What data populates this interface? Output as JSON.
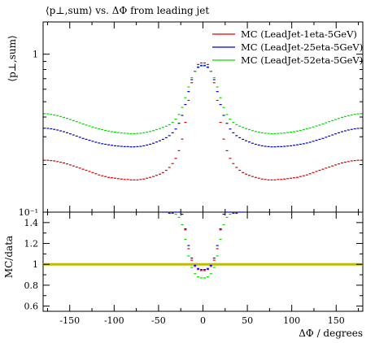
{
  "chart_data": {
    "type": "line",
    "title": "⟨p⊥,sum⟩ vs. ΔΦ from leading jet",
    "ylabel": "⟨p⊥,sum⟩",
    "xlabel": "ΔΦ / degrees",
    "ratio_ylabel": "MC/data",
    "xlim": [
      -180,
      180
    ],
    "ylim": [
      0.1,
      1.6
    ],
    "yscale": "log",
    "ratio_ylim": [
      0.55,
      1.5
    ],
    "x_ticks": [
      "-150",
      "-100",
      "-50",
      "0",
      "50",
      "100",
      "150"
    ],
    "x_tick_values": [
      -150,
      -100,
      -50,
      0,
      50,
      100,
      150
    ],
    "y_ticks": [
      "1",
      "10⁻¹"
    ],
    "y_tick_values": [
      1,
      0.1
    ],
    "ratio_ticks": [
      "1.4",
      "1.2",
      "1",
      "0.8",
      "0.6"
    ],
    "ratio_tick_values": [
      1.4,
      1.2,
      1.0,
      0.8,
      0.6
    ],
    "legend_position": "top-right",
    "x": [
      -178.2,
      -174.6,
      -171,
      -167.4,
      -163.8,
      -160.2,
      -156.6,
      -153,
      -149.4,
      -145.8,
      -142.2,
      -138.6,
      -135,
      -131.4,
      -127.8,
      -124.2,
      -120.6,
      -117,
      -113.4,
      -109.8,
      -106.2,
      -102.6,
      -99,
      -95.4,
      -91.8,
      -88.2,
      -84.6,
      -81,
      -77.4,
      -73.8,
      -70.2,
      -66.6,
      -63,
      -59.4,
      -55.8,
      -52.2,
      -48.6,
      -45,
      -41.4,
      -37.8,
      -34.2,
      -30.6,
      -27,
      -23.4,
      -19.8,
      -16.2,
      -12.6,
      -9,
      -5.4,
      -1.8,
      1.8,
      5.4,
      9,
      12.6,
      16.2,
      19.8,
      23.4,
      27,
      30.6,
      34.2,
      37.8,
      41.4,
      45,
      48.6,
      52.2,
      55.8,
      59.4,
      63,
      66.6,
      70.2,
      73.8,
      77.4,
      81,
      84.6,
      88.2,
      91.8,
      95.4,
      99,
      102.6,
      106.2,
      109.8,
      113.4,
      117,
      120.6,
      124.2,
      127.8,
      131.4,
      135,
      138.6,
      142.2,
      145.8,
      149.4,
      153,
      156.6,
      160.2,
      163.8,
      167.4,
      171,
      174.6,
      178.2
    ],
    "series": [
      {
        "name": "MC (LeadJet-1eta-5GeV)",
        "color": "#dd0000",
        "values": [
          0.213,
          0.213,
          0.212,
          0.211,
          0.209,
          0.207,
          0.205,
          0.202,
          0.199,
          0.196,
          0.193,
          0.19,
          0.187,
          0.184,
          0.181,
          0.178,
          0.175,
          0.172,
          0.17,
          0.168,
          0.166,
          0.165,
          0.164,
          0.163,
          0.162,
          0.161,
          0.161,
          0.16,
          0.16,
          0.16,
          0.161,
          0.162,
          0.164,
          0.166,
          0.168,
          0.171,
          0.174,
          0.178,
          0.184,
          0.192,
          0.203,
          0.219,
          0.245,
          0.29,
          0.37,
          0.51,
          0.66,
          0.78,
          0.86,
          0.88,
          0.88,
          0.86,
          0.78,
          0.66,
          0.51,
          0.37,
          0.29,
          0.245,
          0.219,
          0.203,
          0.192,
          0.184,
          0.178,
          0.174,
          0.171,
          0.168,
          0.166,
          0.164,
          0.162,
          0.161,
          0.16,
          0.16,
          0.16,
          0.161,
          0.161,
          0.162,
          0.163,
          0.164,
          0.165,
          0.166,
          0.168,
          0.17,
          0.172,
          0.175,
          0.178,
          0.181,
          0.184,
          0.187,
          0.19,
          0.193,
          0.196,
          0.199,
          0.202,
          0.205,
          0.207,
          0.209,
          0.211,
          0.212,
          0.213,
          0.213
        ],
        "ratio": [
          1.52,
          1.52,
          1.52,
          1.52,
          1.52,
          1.52,
          1.52,
          1.52,
          1.52,
          1.52,
          1.52,
          1.52,
          1.52,
          1.52,
          1.52,
          1.52,
          1.52,
          1.52,
          1.52,
          1.52,
          1.52,
          1.52,
          1.52,
          1.52,
          1.52,
          1.52,
          1.52,
          1.52,
          1.52,
          1.52,
          1.52,
          1.52,
          1.52,
          1.52,
          1.52,
          1.52,
          1.52,
          1.52,
          1.52,
          1.52,
          1.52,
          1.52,
          1.52,
          1.52,
          1.33,
          1.15,
          1.04,
          0.98,
          0.95,
          0.94,
          0.94,
          0.95,
          0.98,
          1.04,
          1.15,
          1.33,
          1.52,
          1.52,
          1.52,
          1.52,
          1.52,
          1.52,
          1.52,
          1.52,
          1.52,
          1.52,
          1.52,
          1.52,
          1.52,
          1.52,
          1.52,
          1.52,
          1.52,
          1.52,
          1.52,
          1.52,
          1.52,
          1.52,
          1.52,
          1.52,
          1.52,
          1.52,
          1.52,
          1.52,
          1.52,
          1.52,
          1.52,
          1.52,
          1.52,
          1.52,
          1.52,
          1.52,
          1.52,
          1.52,
          1.52,
          1.52,
          1.52,
          1.52,
          1.52,
          1.52
        ]
      },
      {
        "name": "MC (LeadJet-25eta-5GeV)",
        "color": "#0000dd",
        "values": [
          0.34,
          0.339,
          0.337,
          0.334,
          0.331,
          0.327,
          0.323,
          0.318,
          0.313,
          0.308,
          0.303,
          0.298,
          0.293,
          0.289,
          0.285,
          0.281,
          0.277,
          0.274,
          0.271,
          0.269,
          0.267,
          0.265,
          0.263,
          0.262,
          0.261,
          0.26,
          0.26,
          0.259,
          0.259,
          0.26,
          0.261,
          0.263,
          0.266,
          0.269,
          0.273,
          0.278,
          0.283,
          0.289,
          0.296,
          0.305,
          0.318,
          0.336,
          0.365,
          0.41,
          0.48,
          0.58,
          0.69,
          0.78,
          0.83,
          0.85,
          0.85,
          0.83,
          0.78,
          0.69,
          0.58,
          0.48,
          0.41,
          0.365,
          0.336,
          0.318,
          0.305,
          0.296,
          0.289,
          0.283,
          0.278,
          0.273,
          0.269,
          0.266,
          0.263,
          0.261,
          0.26,
          0.259,
          0.259,
          0.26,
          0.26,
          0.261,
          0.262,
          0.263,
          0.265,
          0.267,
          0.269,
          0.271,
          0.274,
          0.277,
          0.281,
          0.285,
          0.289,
          0.293,
          0.298,
          0.303,
          0.308,
          0.313,
          0.318,
          0.323,
          0.327,
          0.331,
          0.334,
          0.337,
          0.339,
          0.34
        ],
        "ratio": [
          1.52,
          1.52,
          1.52,
          1.52,
          1.52,
          1.52,
          1.52,
          1.52,
          1.52,
          1.52,
          1.52,
          1.52,
          1.52,
          1.52,
          1.52,
          1.52,
          1.52,
          1.52,
          1.52,
          1.52,
          1.52,
          1.52,
          1.52,
          1.52,
          1.52,
          1.52,
          1.52,
          1.52,
          1.52,
          1.52,
          1.52,
          1.52,
          1.52,
          1.52,
          1.52,
          1.52,
          1.52,
          1.5,
          1.5,
          1.49,
          1.49,
          1.5,
          1.5,
          1.48,
          1.34,
          1.18,
          1.06,
          0.99,
          0.96,
          0.95,
          0.95,
          0.96,
          0.99,
          1.06,
          1.18,
          1.34,
          1.48,
          1.5,
          1.5,
          1.49,
          1.49,
          1.5,
          1.5,
          1.52,
          1.52,
          1.52,
          1.52,
          1.52,
          1.52,
          1.52,
          1.52,
          1.52,
          1.52,
          1.52,
          1.52,
          1.52,
          1.52,
          1.52,
          1.52,
          1.52,
          1.52,
          1.52,
          1.52,
          1.52,
          1.52,
          1.52,
          1.52,
          1.52,
          1.52,
          1.52,
          1.52,
          1.52,
          1.52,
          1.52,
          1.52,
          1.52,
          1.52,
          1.52,
          1.52,
          1.52
        ]
      },
      {
        "name": "MC (LeadJet-52eta-5GeV)",
        "color": "#00dd00",
        "values": [
          0.42,
          0.419,
          0.416,
          0.412,
          0.408,
          0.403,
          0.398,
          0.392,
          0.386,
          0.38,
          0.374,
          0.368,
          0.362,
          0.356,
          0.351,
          0.346,
          0.341,
          0.337,
          0.333,
          0.329,
          0.326,
          0.323,
          0.321,
          0.319,
          0.317,
          0.316,
          0.315,
          0.314,
          0.314,
          0.315,
          0.316,
          0.318,
          0.321,
          0.324,
          0.328,
          0.333,
          0.338,
          0.344,
          0.35,
          0.358,
          0.37,
          0.388,
          0.415,
          0.46,
          0.53,
          0.62,
          0.71,
          0.78,
          0.82,
          0.84,
          0.84,
          0.82,
          0.78,
          0.71,
          0.62,
          0.53,
          0.46,
          0.415,
          0.388,
          0.37,
          0.358,
          0.35,
          0.344,
          0.338,
          0.333,
          0.328,
          0.324,
          0.321,
          0.318,
          0.316,
          0.315,
          0.314,
          0.314,
          0.315,
          0.316,
          0.317,
          0.319,
          0.321,
          0.323,
          0.326,
          0.329,
          0.333,
          0.337,
          0.341,
          0.346,
          0.351,
          0.356,
          0.362,
          0.368,
          0.374,
          0.38,
          0.386,
          0.392,
          0.398,
          0.403,
          0.408,
          0.412,
          0.416,
          0.419,
          0.42
        ],
        "ratio": [
          1.52,
          1.52,
          1.52,
          1.52,
          1.52,
          1.52,
          1.52,
          1.52,
          1.52,
          1.52,
          1.52,
          1.52,
          1.52,
          1.52,
          1.52,
          1.52,
          1.52,
          1.52,
          1.52,
          1.52,
          1.52,
          1.52,
          1.52,
          1.52,
          1.52,
          1.52,
          1.52,
          1.52,
          1.52,
          1.52,
          1.52,
          1.52,
          1.52,
          1.52,
          1.52,
          1.52,
          1.52,
          1.52,
          1.52,
          1.52,
          1.52,
          1.48,
          1.45,
          1.38,
          1.24,
          1.08,
          0.97,
          0.91,
          0.88,
          0.87,
          0.87,
          0.88,
          0.91,
          0.97,
          1.08,
          1.24,
          1.38,
          1.45,
          1.48,
          1.52,
          1.52,
          1.52,
          1.52,
          1.52,
          1.52,
          1.52,
          1.52,
          1.52,
          1.52,
          1.52,
          1.52,
          1.52,
          1.52,
          1.52,
          1.52,
          1.52,
          1.52,
          1.52,
          1.52,
          1.52,
          1.52,
          1.52,
          1.52,
          1.52,
          1.52,
          1.52,
          1.52,
          1.52,
          1.52,
          1.52,
          1.52,
          1.52,
          1.52,
          1.52,
          1.52,
          1.52,
          1.52,
          1.52,
          1.52,
          1.52
        ]
      }
    ],
    "reference_band": {
      "value": 1.0,
      "color": "#bbbb00"
    }
  }
}
